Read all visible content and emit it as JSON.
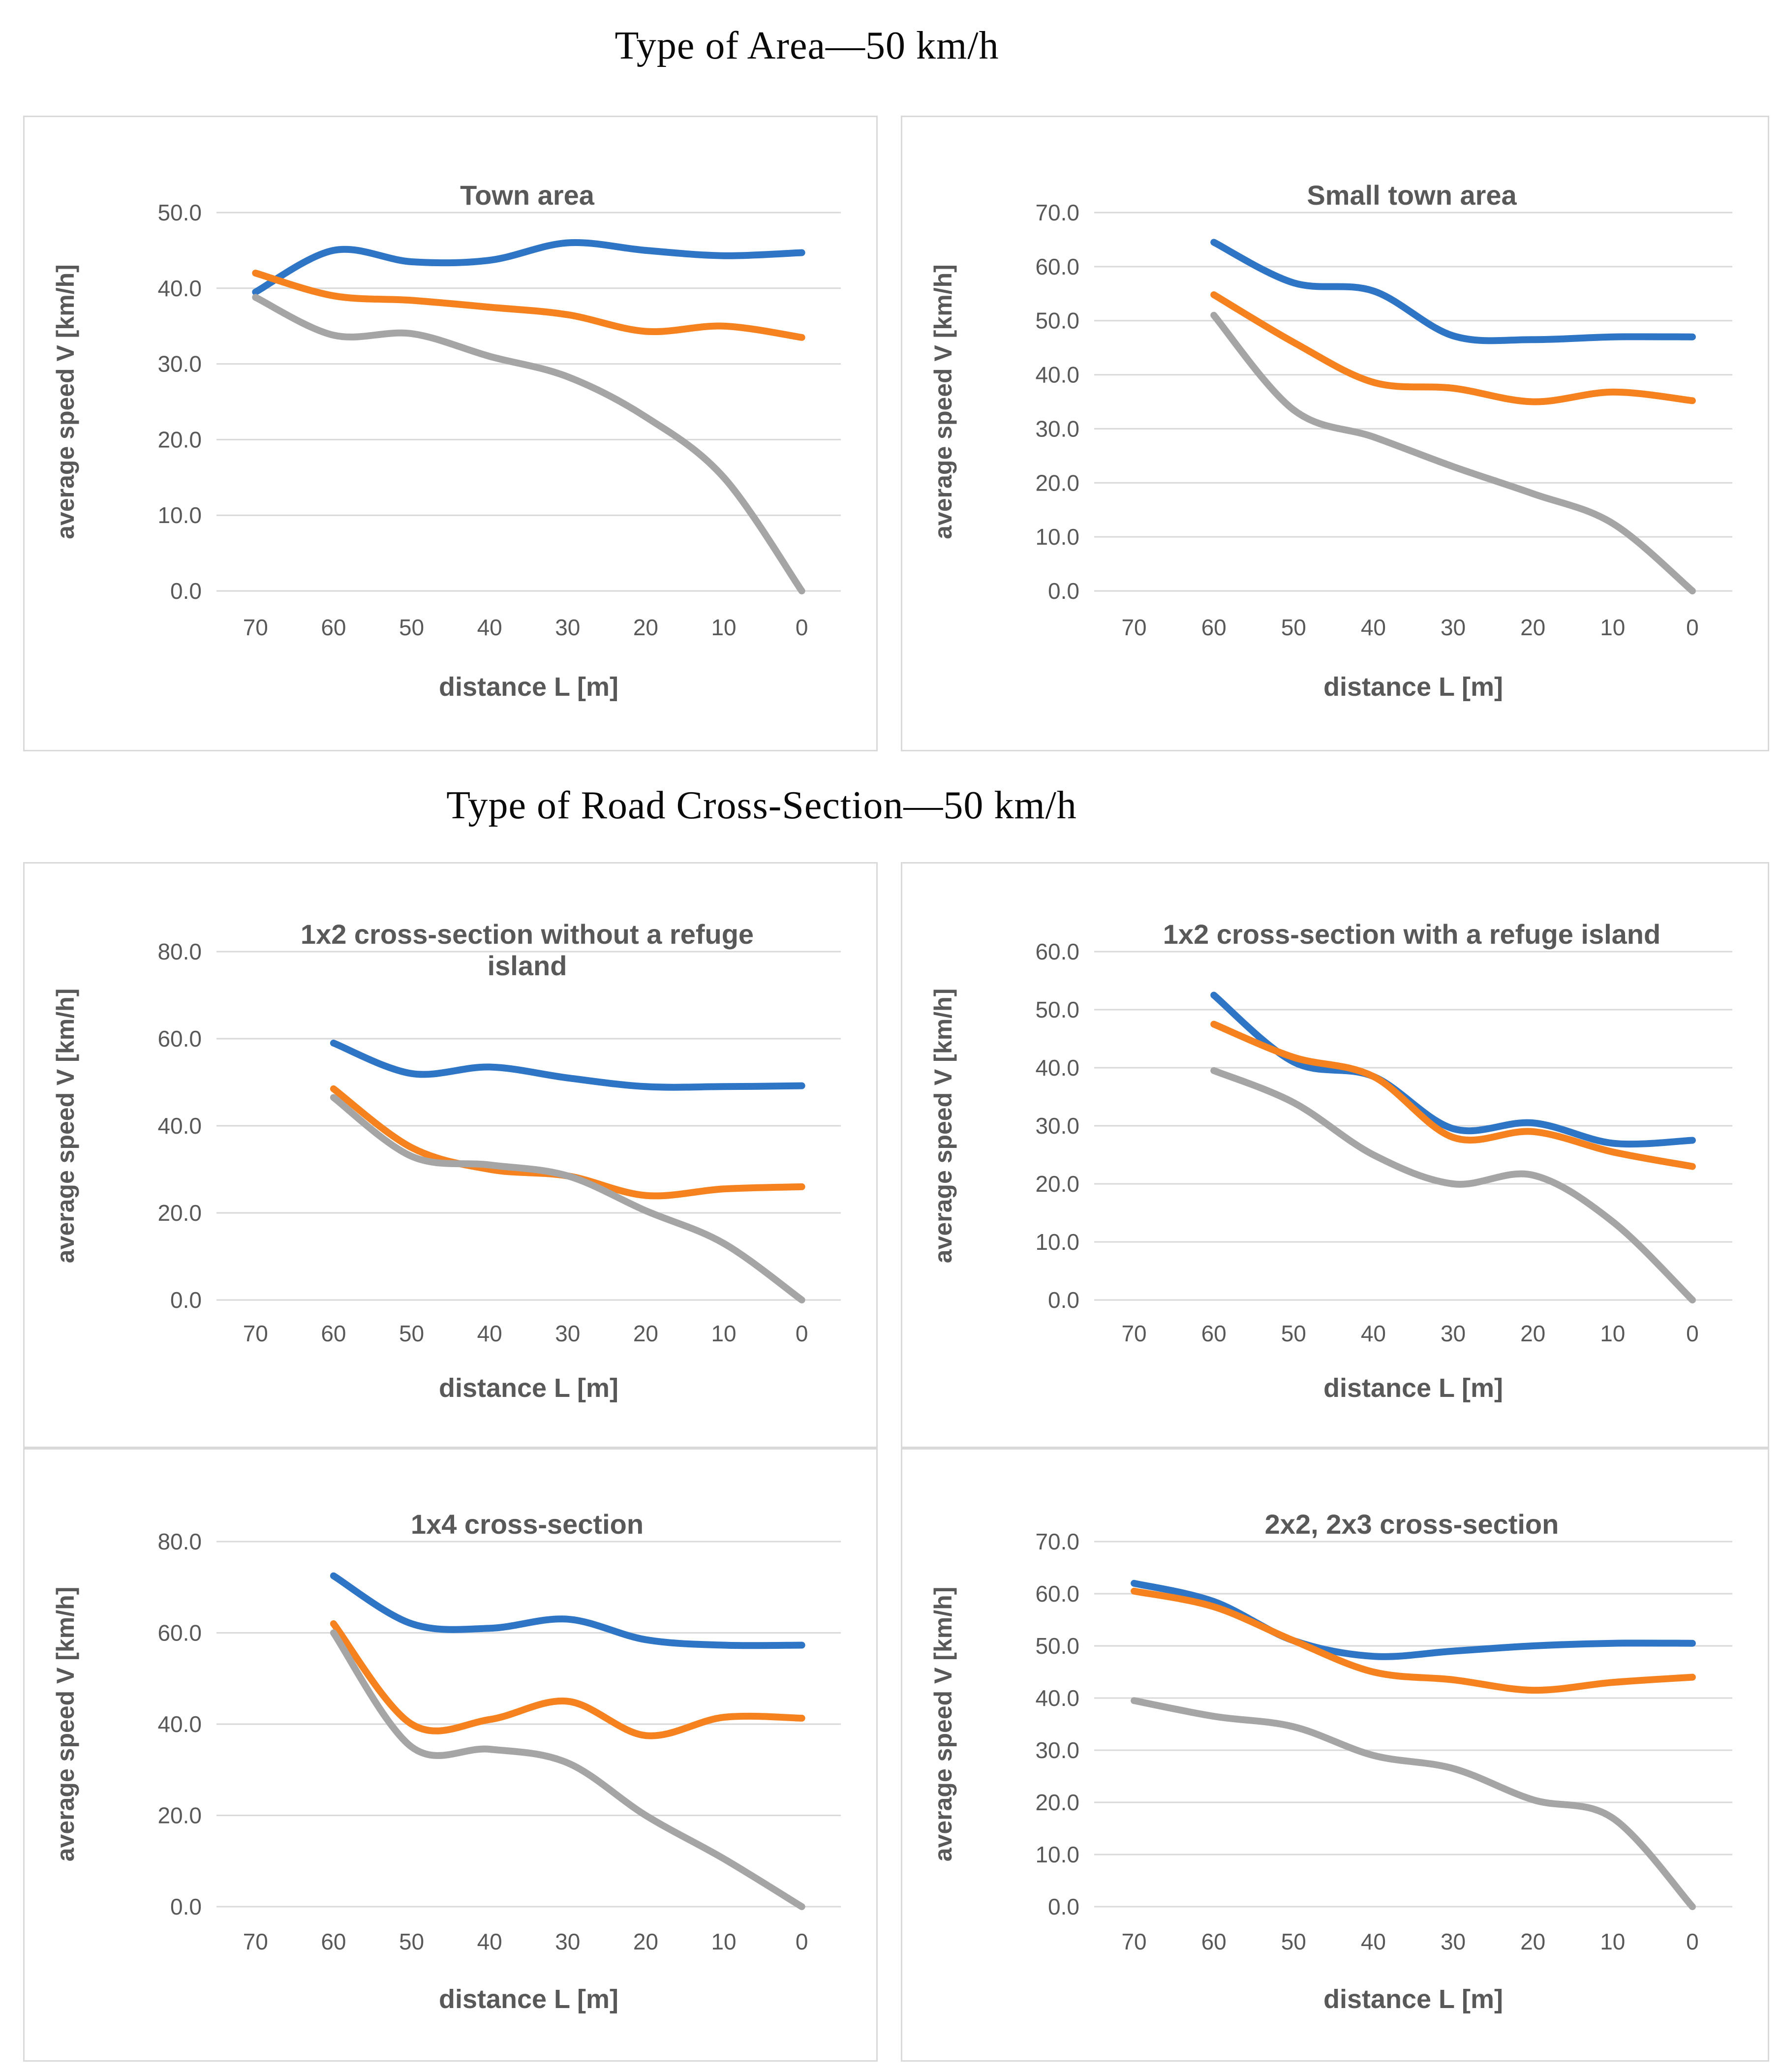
{
  "page": {
    "background": "#FFFFFF",
    "section_titles": [
      "Type of Area—50 km/h",
      "Type of Road Cross-Section—50 km/h"
    ]
  },
  "colors": {
    "series_blue": "#2E75C6",
    "series_orange": "#F5821F",
    "series_gray": "#A5A5A5",
    "gridline": "#D9D9D9",
    "axis_text": "#595959",
    "panel_border": "#D9D9D9",
    "section_title_text": "#0A0A0A"
  },
  "chart_data": [
    {
      "type": "line",
      "title": "Town area",
      "xlabel": "distance L [m]",
      "ylabel": "average speed V [km/h]",
      "categories": [
        70,
        60,
        50,
        40,
        30,
        20,
        10,
        0
      ],
      "ylim": [
        0,
        50
      ],
      "ytick_step": 10,
      "ytick_labels": [
        "0.0",
        "10.0",
        "20.0",
        "30.0",
        "40.0",
        "50.0"
      ],
      "grid": "horizontal",
      "legend": "none",
      "line_style": "smooth",
      "series": [
        {
          "name": "series_1",
          "color": "series_blue",
          "values": [
            39.5,
            45.0,
            43.5,
            43.7,
            46.0,
            45.0,
            44.3,
            44.7
          ]
        },
        {
          "name": "series_2",
          "color": "series_orange",
          "values": [
            42.0,
            39.0,
            38.4,
            37.5,
            36.5,
            34.3,
            35.0,
            33.5
          ]
        },
        {
          "name": "series_3",
          "color": "series_gray",
          "values": [
            38.8,
            33.8,
            34.0,
            31.0,
            28.3,
            23.0,
            15.0,
            0.0
          ]
        }
      ]
    },
    {
      "type": "line",
      "title": "Small town area",
      "xlabel": "distance L [m]",
      "ylabel": "average speed V [km/h]",
      "categories": [
        70,
        60,
        50,
        40,
        30,
        20,
        10,
        0
      ],
      "ylim": [
        0,
        70
      ],
      "ytick_step": 10,
      "ytick_labels": [
        "0.0",
        "10.0",
        "20.0",
        "30.0",
        "40.0",
        "50.0",
        "60.0",
        "70.0"
      ],
      "grid": "horizontal",
      "legend": "none",
      "line_style": "smooth",
      "series": [
        {
          "name": "series_1",
          "color": "series_blue",
          "values": [
            null,
            64.5,
            57.0,
            55.5,
            47.2,
            46.5,
            47.0,
            47.0
          ]
        },
        {
          "name": "series_2",
          "color": "series_orange",
          "values": [
            null,
            54.8,
            46.0,
            38.6,
            37.5,
            35.0,
            36.8,
            35.2
          ]
        },
        {
          "name": "series_3",
          "color": "series_gray",
          "values": [
            null,
            51.0,
            33.5,
            28.5,
            23.0,
            18.0,
            12.5,
            0.0
          ]
        }
      ]
    },
    {
      "type": "line",
      "title": "1x2 cross-section without a refuge\nisland",
      "xlabel": "distance L [m]",
      "ylabel": "average speed V [km/h]",
      "categories": [
        70,
        60,
        50,
        40,
        30,
        20,
        10,
        0
      ],
      "ylim": [
        0,
        80
      ],
      "ytick_step": 20,
      "ytick_labels": [
        "0.0",
        "20.0",
        "40.0",
        "60.0",
        "80.0"
      ],
      "grid": "horizontal",
      "legend": "none",
      "line_style": "smooth",
      "series": [
        {
          "name": "series_1",
          "color": "series_blue",
          "values": [
            null,
            59.0,
            52.0,
            53.5,
            51.0,
            49.0,
            49.0,
            49.2
          ]
        },
        {
          "name": "series_2",
          "color": "series_orange",
          "values": [
            null,
            48.5,
            35.0,
            30.0,
            28.5,
            24.0,
            25.5,
            26.0
          ]
        },
        {
          "name": "series_3",
          "color": "series_gray",
          "values": [
            null,
            46.5,
            33.0,
            31.0,
            28.5,
            20.5,
            13.0,
            0.0
          ]
        }
      ]
    },
    {
      "type": "line",
      "title": "1x2 cross-section with a refuge island",
      "xlabel": "distance L [m]",
      "ylabel": "average speed V [km/h]",
      "categories": [
        70,
        60,
        50,
        40,
        30,
        20,
        10,
        0
      ],
      "ylim": [
        0,
        60
      ],
      "ytick_step": 10,
      "ytick_labels": [
        "0.0",
        "10.0",
        "20.0",
        "30.0",
        "40.0",
        "50.0",
        "60.0"
      ],
      "grid": "horizontal",
      "legend": "none",
      "line_style": "smooth",
      "series": [
        {
          "name": "series_1",
          "color": "series_blue",
          "values": [
            null,
            52.5,
            41.0,
            38.5,
            29.5,
            30.5,
            27.0,
            27.5
          ]
        },
        {
          "name": "series_2",
          "color": "series_orange",
          "values": [
            null,
            47.5,
            41.8,
            38.5,
            28.0,
            29.0,
            25.5,
            23.0
          ]
        },
        {
          "name": "series_3",
          "color": "series_gray",
          "values": [
            null,
            39.5,
            34.0,
            25.0,
            20.0,
            21.5,
            13.5,
            0.0
          ]
        }
      ]
    },
    {
      "type": "line",
      "title": "1x4 cross-section",
      "xlabel": "distance L [m]",
      "ylabel": "average speed V [km/h]",
      "categories": [
        70,
        60,
        50,
        40,
        30,
        20,
        10,
        0
      ],
      "ylim": [
        0,
        80
      ],
      "ytick_step": 20,
      "ytick_labels": [
        "0.0",
        "20.0",
        "40.0",
        "60.0",
        "80.0"
      ],
      "grid": "horizontal",
      "legend": "none",
      "line_style": "smooth",
      "series": [
        {
          "name": "series_1",
          "color": "series_blue",
          "values": [
            null,
            72.5,
            62.0,
            61.0,
            63.0,
            58.5,
            57.3,
            57.3
          ]
        },
        {
          "name": "series_2",
          "color": "series_orange",
          "values": [
            null,
            62.0,
            40.0,
            41.0,
            45.0,
            37.5,
            41.5,
            41.3
          ]
        },
        {
          "name": "series_3",
          "color": "series_gray",
          "values": [
            null,
            60.0,
            35.0,
            34.5,
            31.5,
            20.0,
            10.5,
            0.0
          ]
        }
      ]
    },
    {
      "type": "line",
      "title": "2x2, 2x3 cross-section",
      "xlabel": "distance L [m]",
      "ylabel": "average speed V [km/h]",
      "categories": [
        70,
        60,
        50,
        40,
        30,
        20,
        10,
        0
      ],
      "ylim": [
        0,
        70
      ],
      "ytick_step": 10,
      "ytick_labels": [
        "0.0",
        "10.0",
        "20.0",
        "30.0",
        "40.0",
        "50.0",
        "60.0",
        "70.0"
      ],
      "grid": "horizontal",
      "legend": "none",
      "line_style": "smooth",
      "series": [
        {
          "name": "series_1",
          "color": "series_blue",
          "values": [
            62.0,
            58.5,
            51.0,
            48.0,
            49.0,
            50.0,
            50.5,
            50.5
          ]
        },
        {
          "name": "series_2",
          "color": "series_orange",
          "values": [
            60.5,
            57.5,
            51.0,
            45.0,
            43.5,
            41.5,
            43.0,
            44.0
          ]
        },
        {
          "name": "series_3",
          "color": "series_gray",
          "values": [
            39.5,
            36.5,
            34.5,
            29.0,
            26.5,
            20.5,
            17.0,
            0.0
          ]
        }
      ]
    }
  ]
}
